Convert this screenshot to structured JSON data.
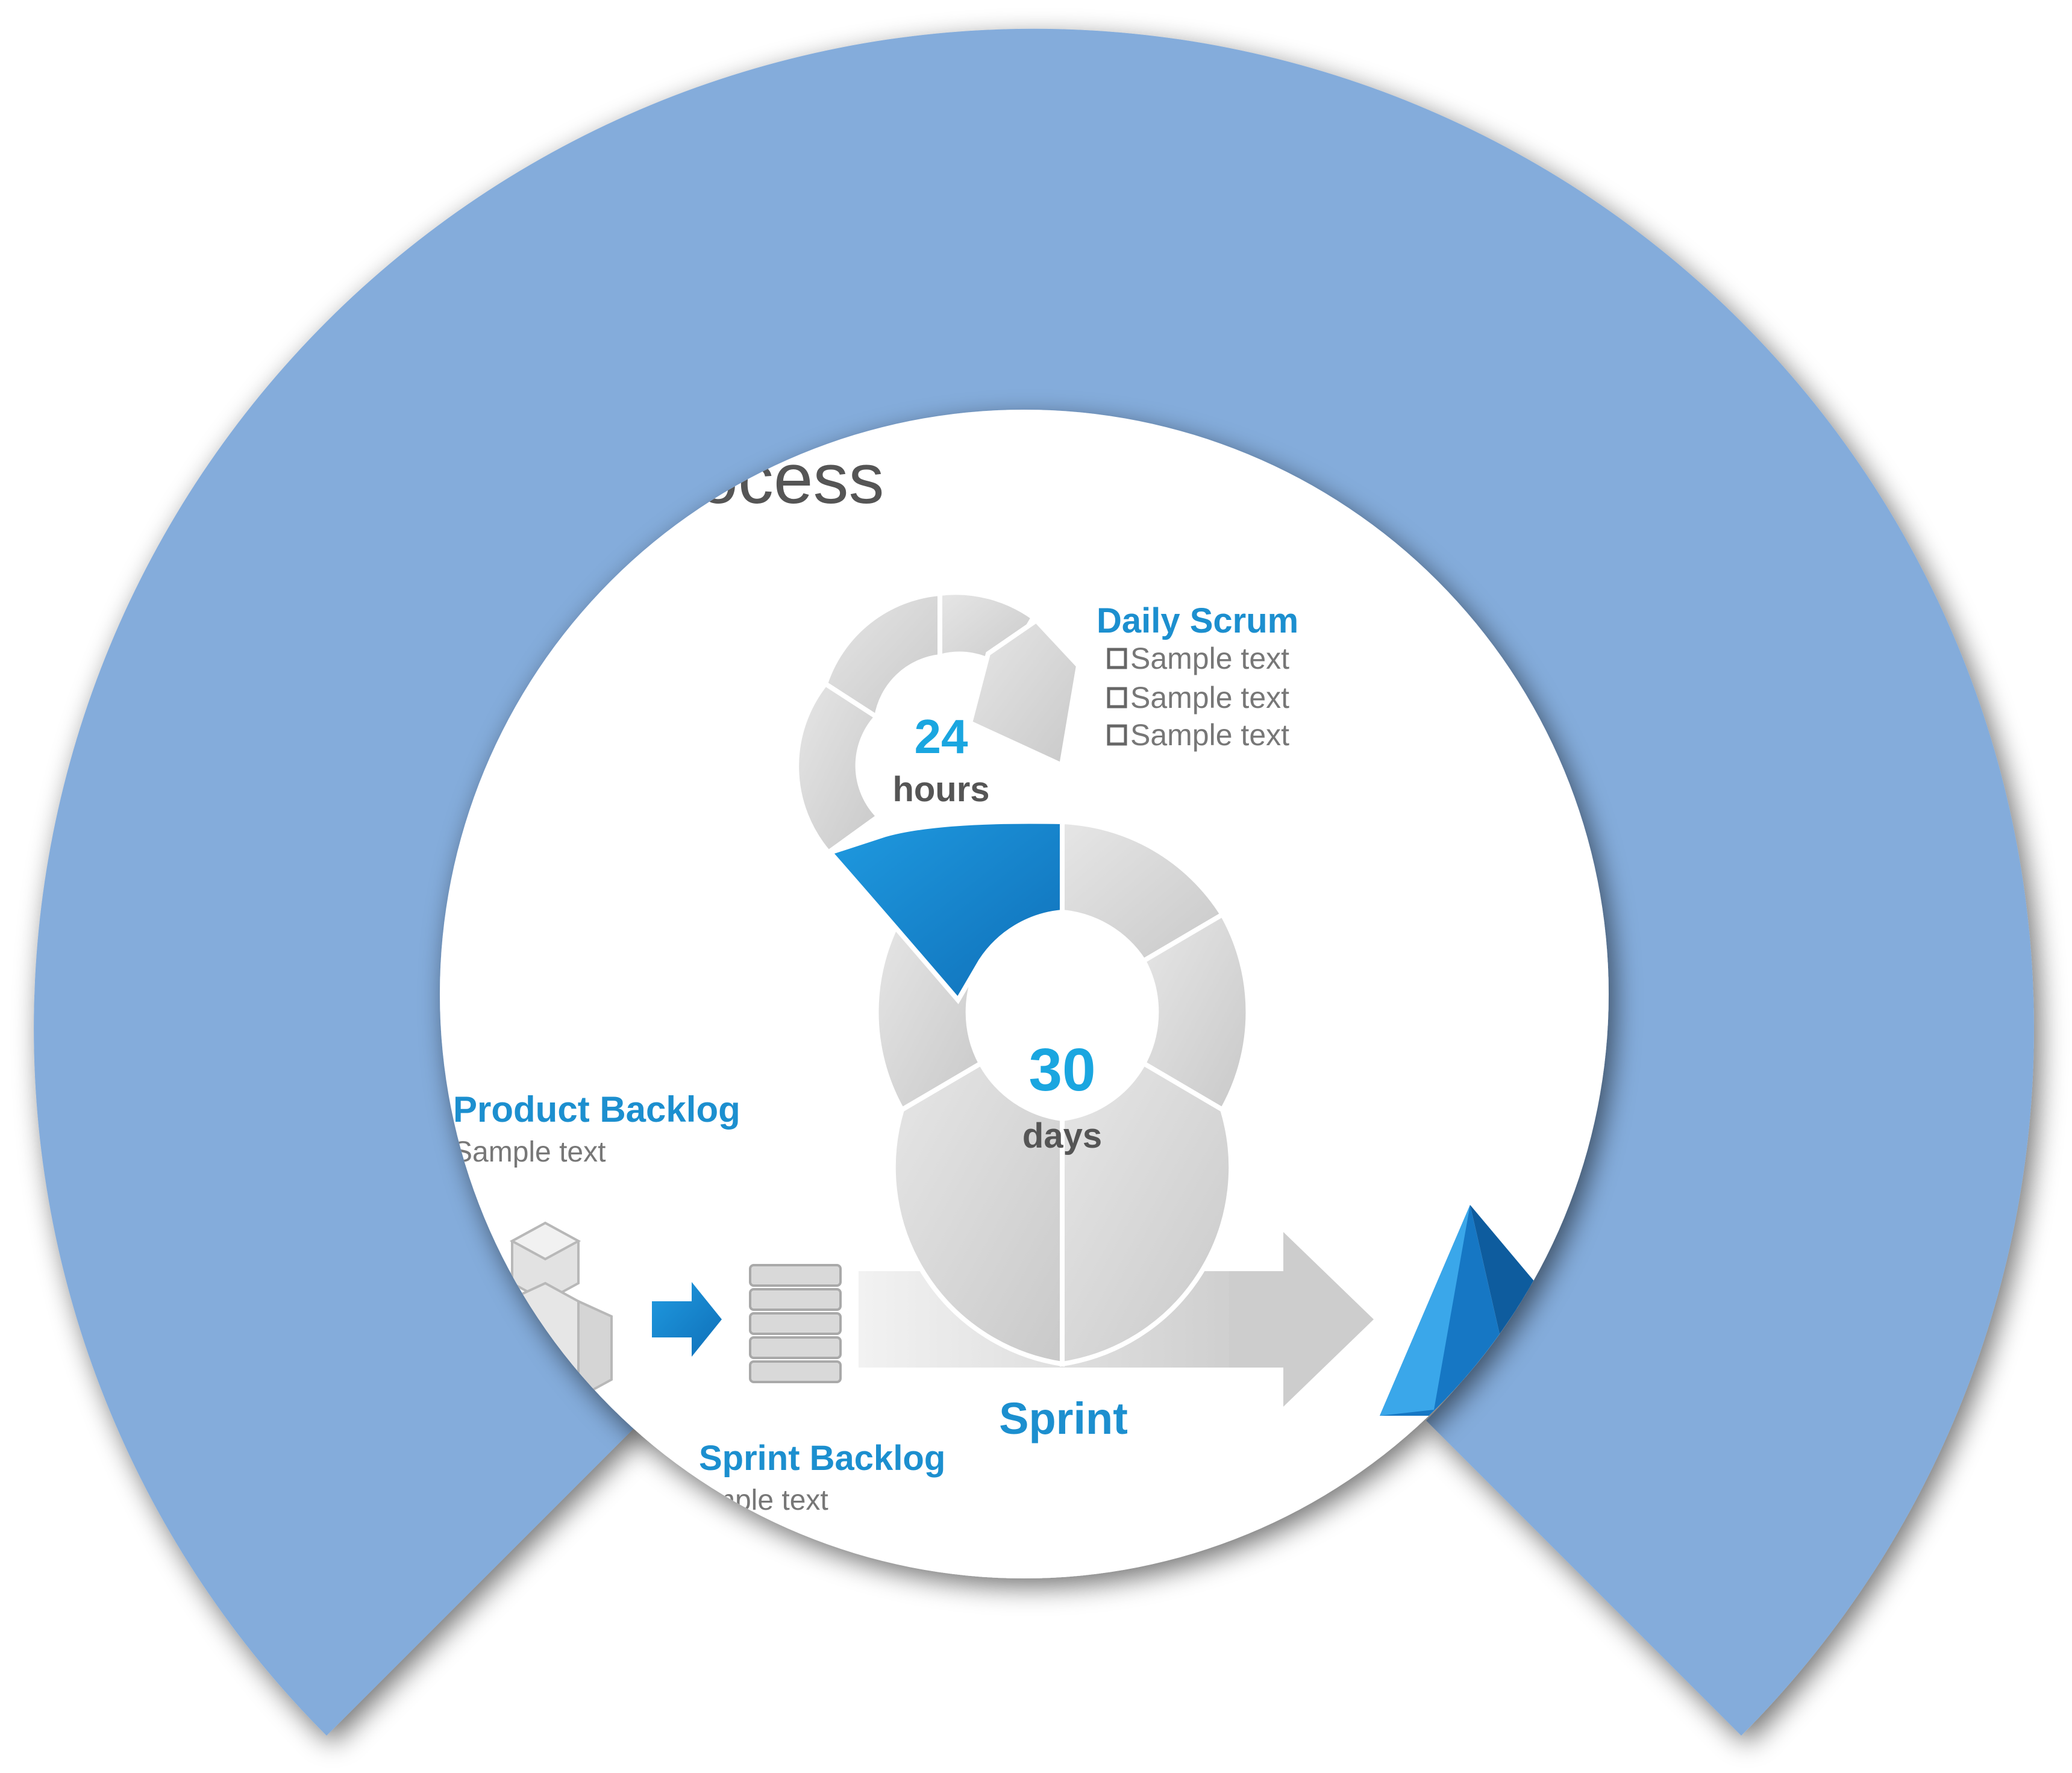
{
  "title_fragment": "rocess",
  "daily_scrum": {
    "heading": "Daily Scrum",
    "items": [
      "Sample text",
      "Sample text",
      "Sample text"
    ]
  },
  "inner_cycle": {
    "number": "24",
    "unit": "hours"
  },
  "outer_cycle": {
    "number": "30",
    "unit": "days"
  },
  "product_backlog": {
    "heading": "Product Backlog",
    "text": "Sample text"
  },
  "sprint_backlog": {
    "heading": "Sprint Backlog",
    "text": "mple text"
  },
  "sprint_label": "Sprint",
  "colors": {
    "ring": "#84acdb",
    "accent_blue": "#1a8ad4",
    "label_blue": "#1c8fcf",
    "number_blue": "#1aa6e0",
    "segment_gray": "#d6d6d6"
  },
  "icons": [
    "cubes-icon",
    "arrow-right-icon",
    "stacked-layers-icon",
    "pyramid-icon",
    "checkbox-icon"
  ]
}
